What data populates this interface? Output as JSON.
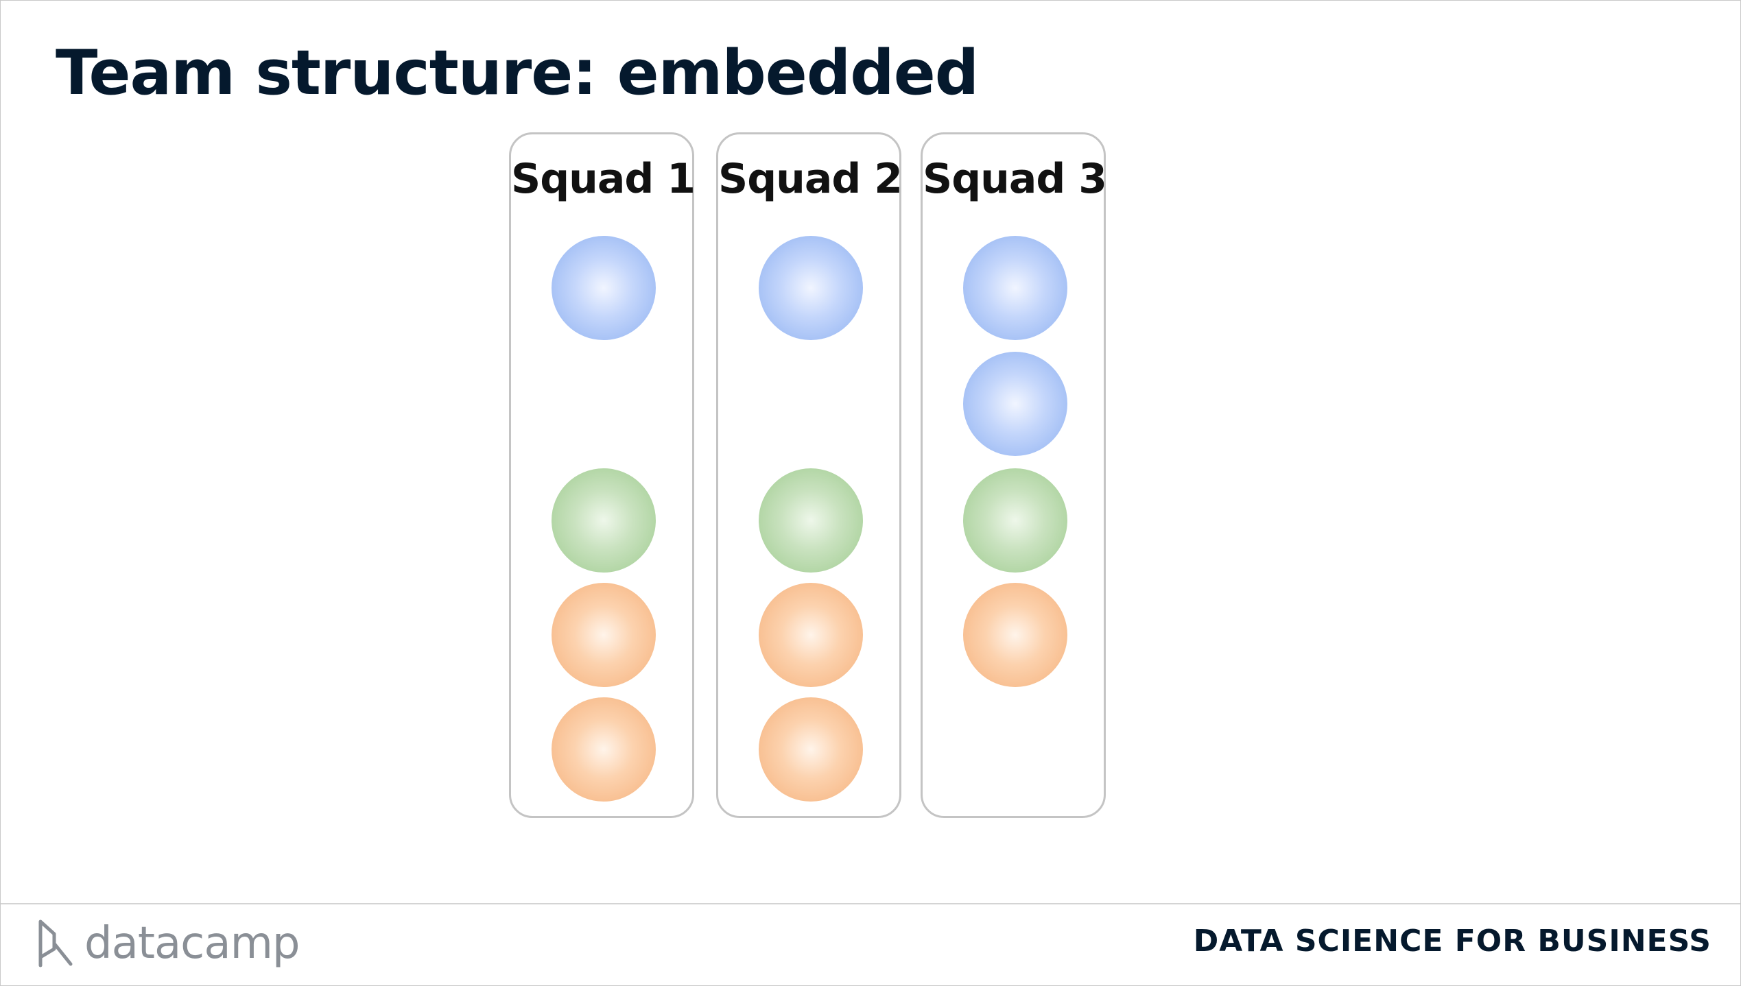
{
  "slide": {
    "title": "Team structure: embedded",
    "squads": [
      {
        "label": "Squad 1",
        "members": [
          {
            "role": "blue",
            "color": "#8db0f1",
            "slot": 0
          },
          {
            "role": "green",
            "color": "#9ecb8e",
            "slot": 2
          },
          {
            "role": "orange",
            "color": "#f5b07a",
            "slot": 3
          },
          {
            "role": "orange",
            "color": "#f5b07a",
            "slot": 4
          }
        ]
      },
      {
        "label": "Squad 2",
        "members": [
          {
            "role": "blue",
            "color": "#8db0f1",
            "slot": 0
          },
          {
            "role": "green",
            "color": "#9ecb8e",
            "slot": 2
          },
          {
            "role": "orange",
            "color": "#f5b07a",
            "slot": 3
          },
          {
            "role": "orange",
            "color": "#f5b07a",
            "slot": 4
          }
        ]
      },
      {
        "label": "Squad 3",
        "members": [
          {
            "role": "blue",
            "color": "#8db0f1",
            "slot": 0
          },
          {
            "role": "blue",
            "color": "#8db0f1",
            "slot": 1
          },
          {
            "role": "green",
            "color": "#9ecb8e",
            "slot": 2
          },
          {
            "role": "orange",
            "color": "#f5b07a",
            "slot": 3
          }
        ]
      }
    ]
  },
  "footer": {
    "logo_text": "datacamp",
    "logo_icon": "datacamp-logo-icon",
    "course_name": "DATA SCIENCE FOR BUSINESS"
  },
  "colors": {
    "title": "#05192d",
    "blue": "#8db0f1",
    "green": "#9ecb8e",
    "orange": "#f5b07a",
    "squad_border": "#c4c4c4"
  }
}
